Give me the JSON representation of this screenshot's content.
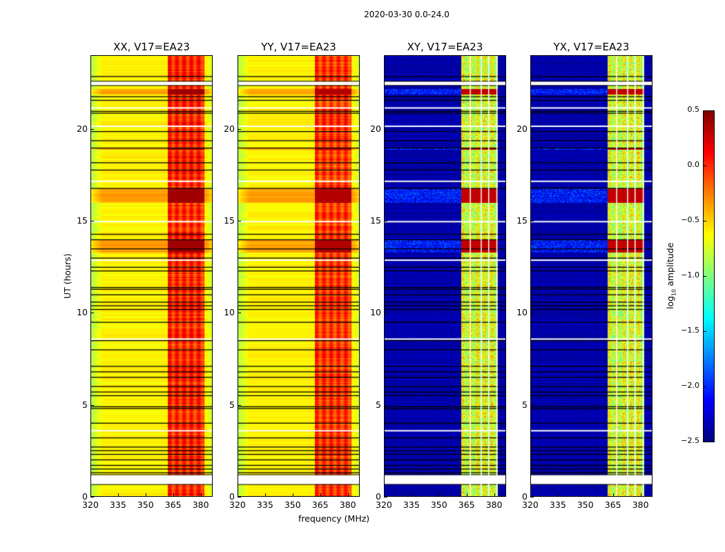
{
  "chart_data": {
    "type": "heatmap",
    "title": "2020-03-30 0.0-24.0",
    "xlabel": "frequency (MHz)",
    "ylabel": "UT (hours)",
    "xlim": [
      320,
      386.5
    ],
    "ylim": [
      0,
      24
    ],
    "xticks": [
      "320",
      "335",
      "350",
      "365",
      "380"
    ],
    "xtick_values": [
      320,
      335,
      350,
      365,
      380
    ],
    "yticks": [
      "0",
      "5",
      "10",
      "15",
      "20"
    ],
    "ytick_values": [
      0,
      5,
      10,
      15,
      20
    ],
    "panels": [
      {
        "title": "XX, V17=EA23",
        "background_level": -0.6,
        "band_level": -0.15,
        "band_peak": 0.4
      },
      {
        "title": "YY, V17=EA23",
        "background_level": -0.6,
        "band_level": -0.2,
        "band_peak": 0.35
      },
      {
        "title": "XY, V17=EA23",
        "background_level": -2.45,
        "band_level": -0.9,
        "band_peak": 0.3
      },
      {
        "title": "YX, V17=EA23",
        "background_level": -2.45,
        "band_level": -0.9,
        "band_peak": 0.3
      }
    ],
    "rfi_band_mhz": [
      362,
      382
    ],
    "bright_time_ranges_hours": [
      [
        16.0,
        16.8
      ],
      [
        21.9,
        22.2
      ],
      [
        13.3,
        14.0
      ],
      [
        18.9,
        19.0
      ]
    ],
    "flagged_time_ranges_hours": [
      [
        0.65,
        1.15
      ],
      [
        22.4,
        22.6
      ]
    ],
    "black_line_times_hours": [
      1.3,
      1.5,
      1.7,
      2.0,
      2.3,
      2.5,
      2.7,
      3.2,
      4.0,
      4.8,
      4.9,
      5.5,
      5.7,
      6.0,
      6.5,
      6.8,
      7.1,
      8.0,
      8.5,
      9.5,
      10.2,
      10.4,
      10.6,
      11.0,
      11.3,
      11.4,
      12.3,
      12.5,
      13.0,
      13.5,
      14.0,
      14.3,
      16.8,
      17.8,
      18.2,
      19.0,
      19.4,
      19.9,
      20.9,
      21.0,
      21.6,
      21.8,
      22.9
    ],
    "white_line_times_hours": [
      3.6,
      8.6,
      12.9,
      15.0,
      17.2,
      20.2,
      21.2
    ],
    "cross_pol_white_columns_mhz": [
      366.9,
      372.9,
      377.0,
      381.5
    ],
    "colorbar": {
      "label": "log10 amplitude",
      "label_main": "log",
      "label_sub": "10",
      "label_rest": " amplitude",
      "range": [
        -2.5,
        0.5
      ],
      "ticks": [
        "0.5",
        "0.0",
        "−0.5",
        "−1.0",
        "−1.5",
        "−2.0",
        "−2.5"
      ],
      "tick_values": [
        0.5,
        0.0,
        -0.5,
        -1.0,
        -1.5,
        -2.0,
        -2.5
      ],
      "colormap": "jet"
    }
  }
}
